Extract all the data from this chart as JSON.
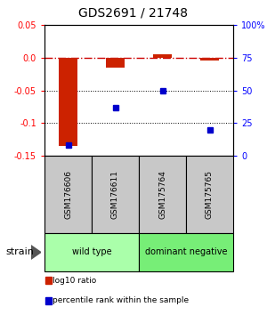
{
  "title": "GDS2691 / 21748",
  "samples": [
    "GSM176606",
    "GSM176611",
    "GSM175764",
    "GSM175765"
  ],
  "log10_ratio": [
    -0.135,
    -0.015,
    0.005,
    -0.005
  ],
  "percentile_rank_pct": [
    8,
    37,
    50,
    20
  ],
  "ylim_left": [
    -0.15,
    0.05
  ],
  "yticks_left": [
    -0.15,
    -0.1,
    -0.05,
    0.0,
    0.05
  ],
  "yticks_right_pct": [
    0,
    25,
    50,
    75,
    100
  ],
  "bar_color": "#cc2200",
  "dot_color": "#0000cc",
  "bar_width": 0.4,
  "groups": [
    {
      "label": "wild type",
      "samples": [
        0,
        1
      ],
      "color": "#aaffaa"
    },
    {
      "label": "dominant negative",
      "samples": [
        2,
        3
      ],
      "color": "#77ee77"
    }
  ],
  "strain_label": "strain",
  "legend_items": [
    {
      "color": "#cc2200",
      "label": "log10 ratio"
    },
    {
      "color": "#0000cc",
      "label": "percentile rank within the sample"
    }
  ]
}
